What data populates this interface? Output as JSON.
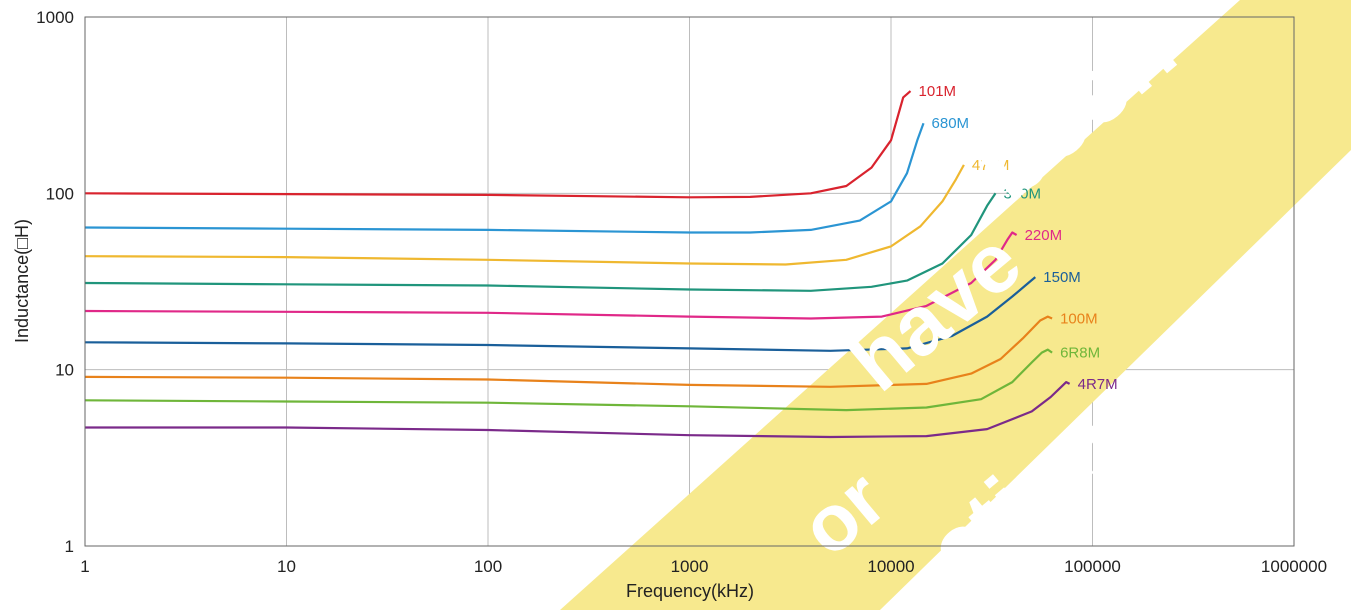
{
  "chart_data": {
    "type": "line",
    "xlabel": "Frequency(kHz)",
    "ylabel": "Inductance(□H)",
    "xscale": "log",
    "yscale": "log",
    "xlim": [
      1,
      1000000
    ],
    "ylim": [
      1,
      1000
    ],
    "grid": true,
    "x_ticks": [
      "1",
      "10",
      "100",
      "1000",
      "10000",
      "100000",
      "1000000"
    ],
    "y_ticks": [
      "1",
      "10",
      "100",
      "1000"
    ],
    "series": [
      {
        "name": "101M",
        "color": "#d9232e",
        "points": [
          [
            1,
            100
          ],
          [
            10,
            99
          ],
          [
            100,
            98
          ],
          [
            1000,
            95
          ],
          [
            2000,
            95.5
          ],
          [
            4000,
            100
          ],
          [
            6000,
            110
          ],
          [
            8000,
            140
          ],
          [
            10000,
            200
          ],
          [
            11500,
            350
          ],
          [
            12500,
            380
          ]
        ]
      },
      {
        "name": "680M",
        "color": "#2b95d3",
        "points": [
          [
            1,
            64
          ],
          [
            10,
            63
          ],
          [
            100,
            62
          ],
          [
            1000,
            60
          ],
          [
            2000,
            60
          ],
          [
            4000,
            62
          ],
          [
            7000,
            70
          ],
          [
            10000,
            90
          ],
          [
            12000,
            130
          ],
          [
            13500,
            200
          ],
          [
            14500,
            250
          ]
        ]
      },
      {
        "name": "470M",
        "color": "#efb830",
        "points": [
          [
            1,
            44
          ],
          [
            10,
            43.5
          ],
          [
            100,
            42
          ],
          [
            1000,
            40
          ],
          [
            3000,
            39.5
          ],
          [
            6000,
            42
          ],
          [
            10000,
            50
          ],
          [
            14000,
            65
          ],
          [
            18000,
            90
          ],
          [
            21000,
            120
          ],
          [
            23000,
            145
          ]
        ]
      },
      {
        "name": "330M",
        "color": "#20957c",
        "points": [
          [
            1,
            31
          ],
          [
            10,
            30.5
          ],
          [
            100,
            30
          ],
          [
            1000,
            28.5
          ],
          [
            4000,
            28
          ],
          [
            8000,
            29.5
          ],
          [
            12000,
            32
          ],
          [
            18000,
            40
          ],
          [
            25000,
            58
          ],
          [
            30000,
            85
          ],
          [
            33000,
            100
          ]
        ]
      },
      {
        "name": "220M",
        "color": "#e02888",
        "points": [
          [
            1,
            21.5
          ],
          [
            10,
            21.3
          ],
          [
            100,
            21
          ],
          [
            1000,
            20
          ],
          [
            4000,
            19.5
          ],
          [
            9000,
            20
          ],
          [
            15000,
            23
          ],
          [
            25000,
            31
          ],
          [
            33000,
            42
          ],
          [
            38000,
            55
          ],
          [
            40000,
            60
          ],
          [
            42000,
            58
          ]
        ]
      },
      {
        "name": "150M",
        "color": "#1a5f9a",
        "points": [
          [
            1,
            14.3
          ],
          [
            10,
            14.1
          ],
          [
            100,
            13.8
          ],
          [
            1000,
            13.2
          ],
          [
            5000,
            12.8
          ],
          [
            12000,
            13.2
          ],
          [
            20000,
            15.5
          ],
          [
            30000,
            20
          ],
          [
            40000,
            26
          ],
          [
            48000,
            31
          ],
          [
            52000,
            33.5
          ]
        ]
      },
      {
        "name": "100M",
        "color": "#e8821b",
        "points": [
          [
            1,
            9.1
          ],
          [
            10,
            9
          ],
          [
            100,
            8.8
          ],
          [
            1000,
            8.2
          ],
          [
            5000,
            8
          ],
          [
            15000,
            8.3
          ],
          [
            25000,
            9.5
          ],
          [
            35000,
            11.5
          ],
          [
            45000,
            15
          ],
          [
            55000,
            19
          ],
          [
            60000,
            20
          ],
          [
            63000,
            19.5
          ]
        ]
      },
      {
        "name": "6R8M",
        "color": "#6fb63a",
        "points": [
          [
            1,
            6.7
          ],
          [
            10,
            6.6
          ],
          [
            100,
            6.5
          ],
          [
            1000,
            6.2
          ],
          [
            6000,
            5.9
          ],
          [
            15000,
            6.1
          ],
          [
            28000,
            6.8
          ],
          [
            40000,
            8.5
          ],
          [
            50000,
            11
          ],
          [
            56000,
            12.5
          ],
          [
            60000,
            13
          ],
          [
            63000,
            12.5
          ]
        ]
      },
      {
        "name": "4R7M",
        "color": "#7b2a8a",
        "points": [
          [
            1,
            4.7
          ],
          [
            10,
            4.7
          ],
          [
            100,
            4.55
          ],
          [
            1000,
            4.25
          ],
          [
            5000,
            4.15
          ],
          [
            15000,
            4.2
          ],
          [
            30000,
            4.6
          ],
          [
            50000,
            5.8
          ],
          [
            62000,
            7
          ],
          [
            70000,
            8
          ],
          [
            74000,
            8.5
          ],
          [
            77000,
            8.3
          ]
        ]
      }
    ]
  },
  "watermark": {
    "lines": [
      "been",
      "have",
      "or",
      "ction"
    ],
    "band_color": "#f7e98e"
  }
}
